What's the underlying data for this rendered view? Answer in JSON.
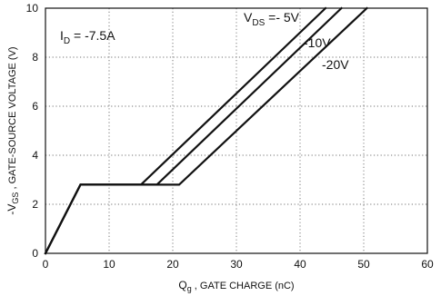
{
  "chart_data": {
    "type": "line",
    "xlabel_main": "Q",
    "xlabel_sub": "g",
    "xlabel_rest": " , GATE CHARGE (nC)",
    "ylabel_main": "-V",
    "ylabel_sub": "GS",
    "ylabel_rest": " , GATE-SOURCE VOLTAGE (V)",
    "xlim": [
      0,
      60
    ],
    "ylim": [
      0,
      10
    ],
    "x_ticks": [
      0,
      10,
      20,
      30,
      40,
      50,
      60
    ],
    "y_ticks": [
      0,
      2,
      4,
      6,
      8,
      10
    ],
    "grid": true,
    "annotations": {
      "id_main": "I",
      "id_sub": "D",
      "id_rest": " = -7.5A",
      "vds_main": "V",
      "vds_sub": "DS",
      "vds_rest": " =- 5V"
    },
    "series": [
      {
        "name": "- 5V",
        "label": "",
        "points": [
          [
            0,
            0
          ],
          [
            5.5,
            2.8
          ],
          [
            15,
            2.8
          ],
          [
            44,
            10
          ]
        ]
      },
      {
        "name": "-10V",
        "label": "-10V",
        "points": [
          [
            0,
            0
          ],
          [
            5.5,
            2.8
          ],
          [
            17.5,
            2.8
          ],
          [
            46.5,
            10
          ]
        ]
      },
      {
        "name": "-20V",
        "label": "-20V",
        "points": [
          [
            0,
            0
          ],
          [
            5.5,
            2.8
          ],
          [
            21,
            2.8
          ],
          [
            50.5,
            10
          ]
        ]
      }
    ],
    "line_color": "#111111"
  }
}
